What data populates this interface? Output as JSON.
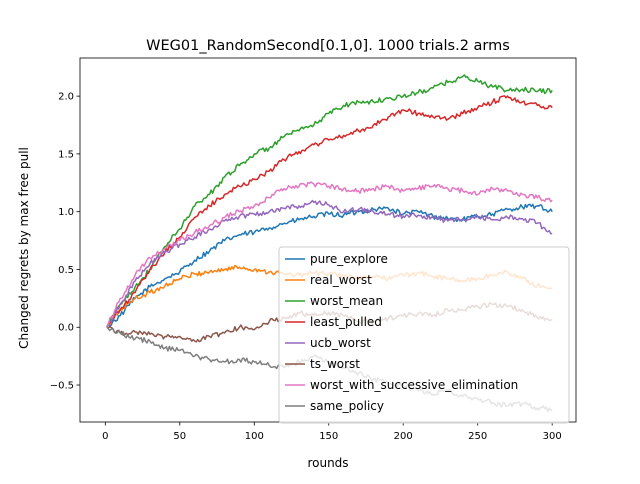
{
  "chart_data": {
    "type": "line",
    "title": "WEG01_RandomSecond[0.1,0]. 1000 trials.2 arms",
    "xlabel": "rounds",
    "ylabel": "Changed regrets by max free pull",
    "xlim": [
      -17,
      316
    ],
    "ylim": [
      -0.82,
      2.33
    ],
    "xticks": [
      0,
      50,
      100,
      150,
      200,
      250,
      300
    ],
    "xtick_labels": [
      "0",
      "50",
      "100",
      "150",
      "200",
      "250",
      "300"
    ],
    "yticks": [
      -0.5,
      0.0,
      0.5,
      1.0,
      1.5,
      2.0
    ],
    "ytick_labels": [
      "−0.5",
      "0.0",
      "0.5",
      "1.0",
      "1.5",
      "2.0"
    ],
    "grid": false,
    "legend_position": "lower-right",
    "series": [
      {
        "name": "pure_explore",
        "color": "#1f77b4",
        "x": [
          1,
          10,
          20,
          30,
          40,
          50,
          60,
          70,
          80,
          90,
          100,
          110,
          120,
          130,
          140,
          150,
          160,
          170,
          180,
          190,
          200,
          210,
          220,
          230,
          240,
          250,
          260,
          270,
          280,
          290,
          300
        ],
        "y": [
          0.0,
          0.1,
          0.25,
          0.35,
          0.42,
          0.48,
          0.58,
          0.66,
          0.75,
          0.8,
          0.82,
          0.86,
          0.9,
          0.93,
          0.96,
          0.98,
          0.97,
          1.0,
          1.02,
          1.03,
          0.98,
          1.0,
          0.96,
          0.94,
          0.93,
          0.96,
          0.98,
          1.02,
          1.04,
          1.05,
          1.0
        ]
      },
      {
        "name": "real_worst",
        "color": "#ff7f0e",
        "x": [
          1,
          10,
          20,
          30,
          40,
          50,
          60,
          70,
          80,
          90,
          100,
          110,
          120,
          130,
          140,
          150,
          160,
          170,
          180,
          190,
          200,
          210,
          220,
          230,
          240,
          250,
          260,
          270,
          280,
          290,
          300
        ],
        "y": [
          0.0,
          0.15,
          0.25,
          0.3,
          0.36,
          0.42,
          0.46,
          0.48,
          0.5,
          0.52,
          0.5,
          0.48,
          0.46,
          0.45,
          0.47,
          0.46,
          0.45,
          0.42,
          0.44,
          0.42,
          0.45,
          0.47,
          0.44,
          0.42,
          0.4,
          0.42,
          0.45,
          0.48,
          0.42,
          0.36,
          0.33
        ]
      },
      {
        "name": "worst_mean",
        "color": "#2ca02c",
        "x": [
          1,
          10,
          20,
          30,
          40,
          50,
          60,
          70,
          80,
          90,
          100,
          110,
          120,
          130,
          140,
          150,
          160,
          170,
          180,
          190,
          200,
          210,
          220,
          230,
          240,
          250,
          260,
          270,
          280,
          290,
          300
        ],
        "y": [
          0.0,
          0.2,
          0.35,
          0.5,
          0.7,
          0.85,
          1.05,
          1.15,
          1.3,
          1.4,
          1.5,
          1.55,
          1.65,
          1.7,
          1.75,
          1.85,
          1.92,
          1.95,
          1.95,
          1.98,
          2.0,
          2.03,
          2.07,
          2.12,
          2.17,
          2.13,
          2.08,
          2.05,
          2.06,
          2.04,
          2.05
        ]
      },
      {
        "name": "least_pulled",
        "color": "#d62728",
        "x": [
          1,
          10,
          20,
          30,
          40,
          50,
          60,
          70,
          80,
          90,
          100,
          110,
          120,
          130,
          140,
          150,
          160,
          170,
          180,
          190,
          200,
          210,
          220,
          230,
          240,
          250,
          260,
          270,
          280,
          290,
          300
        ],
        "y": [
          0.0,
          0.15,
          0.3,
          0.5,
          0.65,
          0.78,
          0.95,
          1.05,
          1.15,
          1.22,
          1.28,
          1.35,
          1.45,
          1.52,
          1.58,
          1.62,
          1.66,
          1.7,
          1.75,
          1.82,
          1.88,
          1.85,
          1.82,
          1.8,
          1.85,
          1.9,
          1.95,
          2.0,
          1.95,
          1.92,
          1.9
        ]
      },
      {
        "name": "ucb_worst",
        "color": "#9467bd",
        "x": [
          1,
          10,
          20,
          30,
          40,
          50,
          60,
          70,
          80,
          90,
          100,
          110,
          120,
          130,
          140,
          150,
          160,
          170,
          180,
          190,
          200,
          210,
          220,
          230,
          240,
          250,
          260,
          270,
          280,
          290,
          300
        ],
        "y": [
          0.0,
          0.2,
          0.4,
          0.55,
          0.65,
          0.72,
          0.78,
          0.85,
          0.92,
          0.96,
          0.98,
          1.0,
          1.03,
          1.05,
          1.08,
          1.06,
          1.0,
          1.02,
          1.0,
          0.98,
          0.96,
          0.97,
          0.95,
          0.92,
          0.94,
          0.96,
          0.93,
          0.95,
          0.94,
          0.9,
          0.81
        ]
      },
      {
        "name": "ts_worst",
        "color": "#8c564b",
        "x": [
          1,
          10,
          20,
          30,
          40,
          50,
          60,
          70,
          80,
          90,
          100,
          110,
          120,
          130,
          140,
          150,
          160,
          170,
          180,
          190,
          200,
          210,
          220,
          230,
          240,
          250,
          260,
          270,
          280,
          290,
          300
        ],
        "y": [
          0.0,
          -0.05,
          -0.04,
          -0.06,
          -0.08,
          -0.08,
          -0.12,
          -0.08,
          -0.05,
          0.0,
          -0.02,
          0.05,
          0.08,
          0.12,
          0.1,
          0.13,
          0.1,
          0.05,
          0.05,
          0.08,
          0.1,
          0.12,
          0.1,
          0.15,
          0.15,
          0.18,
          0.2,
          0.18,
          0.15,
          0.08,
          0.07
        ]
      },
      {
        "name": "worst_with_successive_elimination",
        "color": "#e377c2",
        "x": [
          1,
          10,
          20,
          30,
          40,
          50,
          60,
          70,
          80,
          90,
          100,
          110,
          120,
          130,
          140,
          150,
          160,
          170,
          180,
          190,
          200,
          210,
          220,
          230,
          240,
          250,
          260,
          270,
          280,
          290,
          300
        ],
        "y": [
          0.0,
          0.25,
          0.45,
          0.6,
          0.68,
          0.75,
          0.82,
          0.88,
          0.95,
          1.0,
          1.05,
          1.12,
          1.2,
          1.22,
          1.24,
          1.22,
          1.2,
          1.18,
          1.2,
          1.22,
          1.18,
          1.2,
          1.22,
          1.2,
          1.18,
          1.15,
          1.2,
          1.18,
          1.15,
          1.12,
          1.1
        ]
      },
      {
        "name": "same_policy",
        "color": "#7f7f7f",
        "x": [
          1,
          10,
          20,
          30,
          40,
          50,
          60,
          70,
          80,
          90,
          100,
          110,
          120,
          130,
          140,
          150,
          160,
          170,
          180,
          190,
          200,
          210,
          220,
          230,
          240,
          250,
          260,
          270,
          280,
          290,
          300
        ],
        "y": [
          0.0,
          -0.05,
          -0.1,
          -0.12,
          -0.18,
          -0.2,
          -0.25,
          -0.28,
          -0.3,
          -0.28,
          -0.3,
          -0.33,
          -0.35,
          -0.3,
          -0.25,
          -0.3,
          -0.35,
          -0.4,
          -0.45,
          -0.48,
          -0.5,
          -0.55,
          -0.58,
          -0.55,
          -0.6,
          -0.62,
          -0.65,
          -0.68,
          -0.66,
          -0.7,
          -0.71
        ]
      }
    ]
  }
}
